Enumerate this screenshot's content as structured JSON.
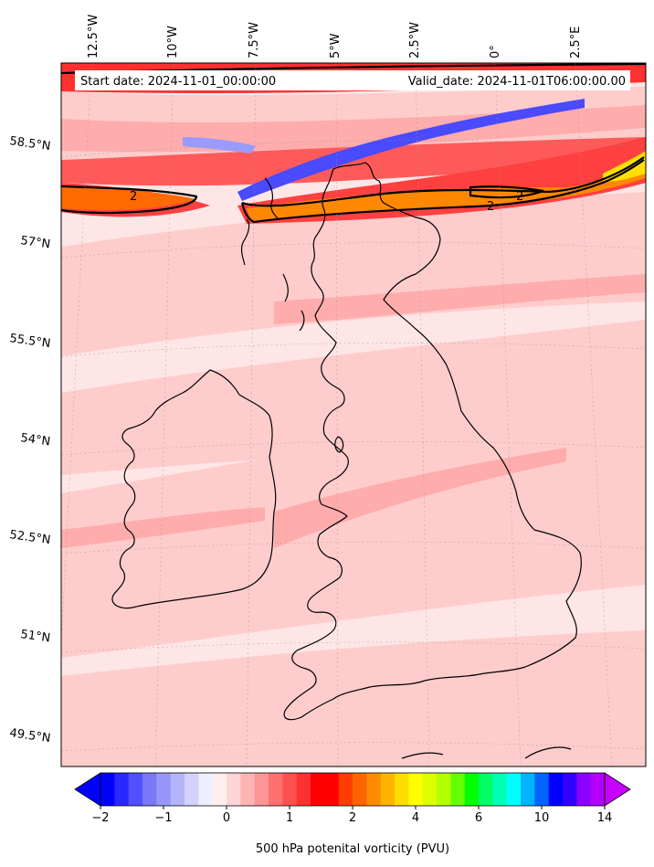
{
  "header": {
    "start_label": "Start date: 2024-11-01_00:00:00",
    "valid_label": "Valid_date: 2024-11-01T06:00:00.00"
  },
  "longitude_labels": [
    "12.5°W",
    "10°W",
    "7.5°W",
    "5°W",
    "2.5°W",
    "0°",
    "2.5°E"
  ],
  "latitude_labels": [
    "58.5°N",
    "57°N",
    "55.5°N",
    "54°N",
    "52.5°N",
    "51°N",
    "49.5°N"
  ],
  "contour_labels": [
    "2",
    "2",
    "2"
  ],
  "colorbar": {
    "label": "500 hPa potenital vorticity (PVU)",
    "ticks": [
      "−2",
      "−1",
      "0",
      "1",
      "2",
      "4",
      "6",
      "10",
      "14"
    ],
    "colors": [
      "#0000ff",
      "#2828ff",
      "#5050ff",
      "#7878f8",
      "#9696f8",
      "#b4b4fa",
      "#d2d2fc",
      "#eeeeff",
      "#ffeeee",
      "#ffd4d4",
      "#ffb4b4",
      "#ff9494",
      "#ff7070",
      "#ff5050",
      "#ff3030",
      "#ff0000",
      "#ff0000",
      "#ff3c00",
      "#ff6400",
      "#ff8c00",
      "#ffb400",
      "#ffdc00",
      "#ffff00",
      "#dcff00",
      "#b4ff00",
      "#64ff00",
      "#00ff00",
      "#00ff64",
      "#00ffb4",
      "#00ffff",
      "#00b4ff",
      "#0064ff",
      "#0000ff",
      "#3200ff",
      "#8c00ff",
      "#b400ff"
    ],
    "extend_low": "#0000ff",
    "extend_high": "#c800ff"
  }
}
